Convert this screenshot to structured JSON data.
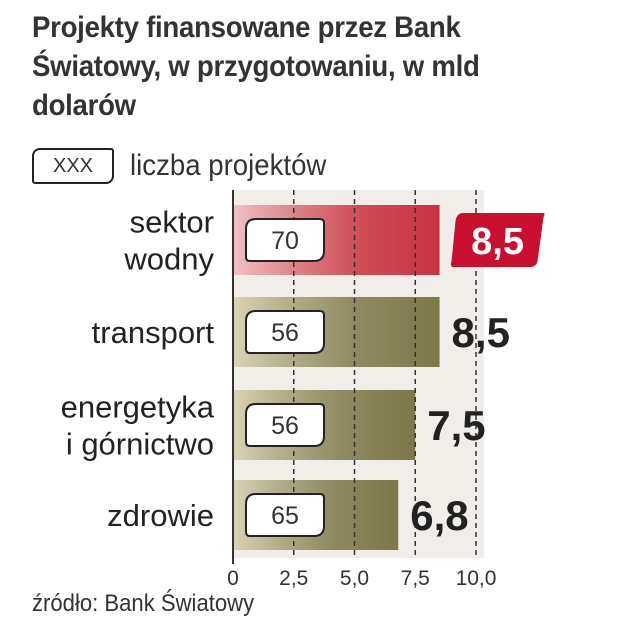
{
  "title": "Projekty finansowane przez Bank Światowy, w przygotowaniu, w mld dolarów",
  "legend": {
    "box_text": "XXX",
    "label": "liczba projektów"
  },
  "source": "źródło: Bank Światowy",
  "colors": {
    "highlight_bar": "#c8323f",
    "highlight_bar_light": "#f0c2c6",
    "bar": "#7d7848",
    "bar_light": "#d9d3b4",
    "panel": "#f1eeea",
    "highlight_value_bg": "#c8102e",
    "text": "#222222"
  },
  "chart_data": {
    "type": "bar",
    "orientation": "horizontal",
    "title": "Projekty finansowane przez Bank Światowy, w przygotowaniu, w mld dolarów",
    "xlabel": "",
    "ylabel": "",
    "xlim": [
      0,
      10
    ],
    "grid": "dashed vertical",
    "ticks": [
      {
        "value": 0,
        "label": "0"
      },
      {
        "value": 2.5,
        "label": "2,5"
      },
      {
        "value": 5,
        "label": "5,0"
      },
      {
        "value": 7.5,
        "label": "7,5"
      },
      {
        "value": 10,
        "label": "10,0"
      }
    ],
    "categories": [
      {
        "label_lines": [
          "sektor",
          "wodny"
        ],
        "value": 8.5,
        "value_label": "8,5",
        "count": "70",
        "highlight": true
      },
      {
        "label_lines": [
          "transport"
        ],
        "value": 8.5,
        "value_label": "8,5",
        "count": "56",
        "highlight": false
      },
      {
        "label_lines": [
          "energetyka",
          "i górnictwo"
        ],
        "value": 7.5,
        "value_label": "7,5",
        "count": "56",
        "highlight": false
      },
      {
        "label_lines": [
          "zdrowie"
        ],
        "value": 6.8,
        "value_label": "6,8",
        "count": "65",
        "highlight": false
      }
    ]
  }
}
